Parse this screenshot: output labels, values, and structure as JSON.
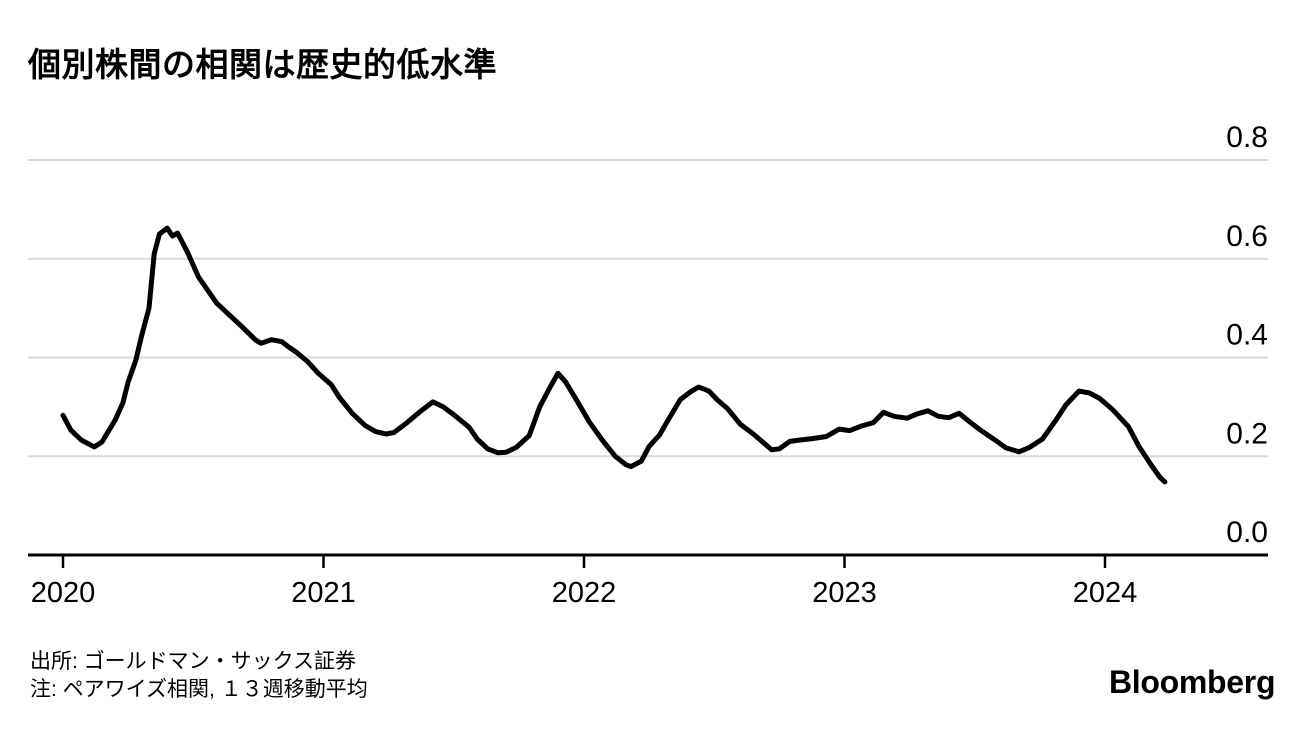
{
  "header": {
    "title": "個別株間の相関は歴史的低水準"
  },
  "footer": {
    "source": "出所: ゴールドマン・サックス証券",
    "note": "注: ペアワイズ相関, １３週移動平均",
    "logo": "Bloomberg"
  },
  "colors": {
    "line": "#000000",
    "grid": "#d9d9d9",
    "axis": "#000000",
    "text": "#000000",
    "background": "#ffffff"
  },
  "chart_data": {
    "type": "line",
    "title": "個別株間の相関は歴史的低水準",
    "xlabel": "",
    "ylabel": "",
    "x_ticks": [
      2020,
      2021,
      2022,
      2023,
      2024
    ],
    "y_ticks": [
      0.8,
      0.6,
      0.4,
      0.2,
      0.0
    ],
    "ylim": [
      0.0,
      0.8
    ],
    "xlim": [
      2019.87,
      2024.63
    ],
    "grid": "horizontal-light-gray",
    "legend_position": "none",
    "series": [
      {
        "name": "ペアワイズ相関（13週移動平均）",
        "color": "#000000",
        "points": [
          [
            2020.0,
            0.283
          ],
          [
            2020.03,
            0.253
          ],
          [
            2020.07,
            0.233
          ],
          [
            2020.12,
            0.219
          ],
          [
            2020.15,
            0.229
          ],
          [
            2020.17,
            0.247
          ],
          [
            2020.2,
            0.273
          ],
          [
            2020.23,
            0.308
          ],
          [
            2020.25,
            0.35
          ],
          [
            2020.28,
            0.395
          ],
          [
            2020.3,
            0.44
          ],
          [
            2020.33,
            0.5
          ],
          [
            2020.35,
            0.61
          ],
          [
            2020.37,
            0.65
          ],
          [
            2020.4,
            0.662
          ],
          [
            2020.42,
            0.646
          ],
          [
            2020.44,
            0.652
          ],
          [
            2020.48,
            0.611
          ],
          [
            2020.52,
            0.563
          ],
          [
            2020.59,
            0.51
          ],
          [
            2020.68,
            0.466
          ],
          [
            2020.74,
            0.435
          ],
          [
            2020.76,
            0.429
          ],
          [
            2020.8,
            0.436
          ],
          [
            2020.84,
            0.432
          ],
          [
            2020.87,
            0.42
          ],
          [
            2020.9,
            0.409
          ],
          [
            2020.94,
            0.391
          ],
          [
            2020.98,
            0.368
          ],
          [
            2021.03,
            0.345
          ],
          [
            2021.06,
            0.32
          ],
          [
            2021.11,
            0.287
          ],
          [
            2021.16,
            0.262
          ],
          [
            2021.2,
            0.25
          ],
          [
            2021.24,
            0.245
          ],
          [
            2021.27,
            0.248
          ],
          [
            2021.32,
            0.268
          ],
          [
            2021.37,
            0.29
          ],
          [
            2021.42,
            0.31
          ],
          [
            2021.46,
            0.3
          ],
          [
            2021.51,
            0.28
          ],
          [
            2021.56,
            0.258
          ],
          [
            2021.59,
            0.235
          ],
          [
            2021.63,
            0.215
          ],
          [
            2021.67,
            0.207
          ],
          [
            2021.7,
            0.208
          ],
          [
            2021.74,
            0.218
          ],
          [
            2021.79,
            0.242
          ],
          [
            2021.83,
            0.3
          ],
          [
            2021.87,
            0.34
          ],
          [
            2021.9,
            0.368
          ],
          [
            2021.93,
            0.35
          ],
          [
            2021.97,
            0.315
          ],
          [
            2022.02,
            0.27
          ],
          [
            2022.07,
            0.233
          ],
          [
            2022.12,
            0.2
          ],
          [
            2022.16,
            0.183
          ],
          [
            2022.18,
            0.179
          ],
          [
            2022.22,
            0.19
          ],
          [
            2022.25,
            0.22
          ],
          [
            2022.29,
            0.243
          ],
          [
            2022.33,
            0.28
          ],
          [
            2022.37,
            0.315
          ],
          [
            2022.41,
            0.331
          ],
          [
            2022.44,
            0.34
          ],
          [
            2022.48,
            0.332
          ],
          [
            2022.51,
            0.315
          ],
          [
            2022.55,
            0.297
          ],
          [
            2022.6,
            0.265
          ],
          [
            2022.65,
            0.245
          ],
          [
            2022.69,
            0.227
          ],
          [
            2022.72,
            0.213
          ],
          [
            2022.75,
            0.215
          ],
          [
            2022.79,
            0.23
          ],
          [
            2022.83,
            0.233
          ],
          [
            2022.88,
            0.236
          ],
          [
            2022.93,
            0.24
          ],
          [
            2022.98,
            0.255
          ],
          [
            2023.02,
            0.252
          ],
          [
            2023.07,
            0.262
          ],
          [
            2023.11,
            0.268
          ],
          [
            2023.15,
            0.289
          ],
          [
            2023.19,
            0.281
          ],
          [
            2023.24,
            0.277
          ],
          [
            2023.28,
            0.286
          ],
          [
            2023.32,
            0.292
          ],
          [
            2023.36,
            0.281
          ],
          [
            2023.4,
            0.278
          ],
          [
            2023.44,
            0.287
          ],
          [
            2023.48,
            0.27
          ],
          [
            2023.53,
            0.25
          ],
          [
            2023.58,
            0.232
          ],
          [
            2023.62,
            0.217
          ],
          [
            2023.67,
            0.209
          ],
          [
            2023.71,
            0.218
          ],
          [
            2023.76,
            0.235
          ],
          [
            2023.81,
            0.272
          ],
          [
            2023.85,
            0.304
          ],
          [
            2023.9,
            0.332
          ],
          [
            2023.94,
            0.328
          ],
          [
            2023.98,
            0.317
          ],
          [
            2024.03,
            0.294
          ],
          [
            2024.09,
            0.26
          ],
          [
            2024.13,
            0.22
          ],
          [
            2024.18,
            0.18
          ],
          [
            2024.21,
            0.158
          ],
          [
            2024.23,
            0.148
          ]
        ]
      }
    ]
  }
}
